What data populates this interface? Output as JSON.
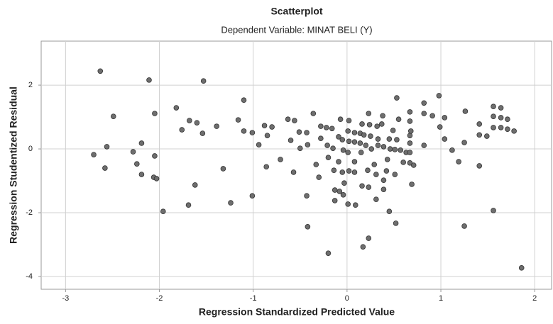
{
  "chart_data": {
    "type": "scatter",
    "title": "Scatterplot",
    "subtitle": "Dependent Variable: MINAT BELI (Y)",
    "x_label": "Regression Standardized Predicted Value",
    "y_label": "Regression Studentized Residual",
    "color": "#6e6e6e",
    "grid": true,
    "xlim": [
      -3.26,
      2.18
    ],
    "xticks": [
      -3,
      -2,
      -1,
      0,
      1,
      2
    ],
    "ylim": [
      -4.4,
      3.38
    ],
    "yticks": [
      -4,
      -2,
      0,
      2
    ],
    "x": [
      -2.63,
      -2.11,
      -1.53,
      -2.49,
      -2.05,
      -1.82,
      -1.76,
      -1.68,
      -1.6,
      -1.54,
      -1.39,
      -1.16,
      -1.1,
      -1.1,
      -1.01,
      -0.94,
      -0.88,
      -0.8,
      -0.86,
      -1.01,
      -1.24,
      -1.32,
      -1.62,
      -1.69,
      -1.96,
      -2.7,
      -2.56,
      -2.58,
      -2.28,
      -2.24,
      -2.19,
      -2.19,
      -2.06,
      -2.03,
      -2.05,
      -0.85,
      -0.71,
      -0.63,
      -0.56,
      -0.51,
      -0.43,
      -0.6,
      -0.57,
      -0.5,
      -0.42,
      -0.43,
      -0.42,
      -0.36,
      -0.33,
      -0.28,
      -0.28,
      -0.3,
      -0.22,
      -0.21,
      -0.2,
      -0.2,
      -0.16,
      -0.15,
      -0.14,
      -0.13,
      -0.13,
      -0.09,
      -0.09,
      -0.08,
      -0.07,
      -0.05,
      -0.04,
      -0.05,
      -0.03,
      -0.04,
      0.02,
      0.01,
      0.02,
      0.01,
      0.02,
      0.01,
      0.08,
      0.08,
      0.08,
      0.08,
      0.09,
      0.14,
      0.14,
      0.15,
      0.16,
      0.16,
      0.17,
      0.18,
      0.2,
      0.22,
      0.23,
      0.23,
      0.23,
      0.24,
      0.25,
      0.26,
      0.29,
      0.31,
      0.31,
      0.32,
      0.33,
      0.33,
      0.38,
      0.37,
      0.39,
      0.39,
      0.39,
      0.43,
      0.42,
      0.45,
      0.46,
      0.45,
      0.49,
      0.51,
      0.51,
      0.53,
      0.53,
      0.52,
      0.55,
      0.57,
      0.6,
      0.63,
      0.67,
      0.67,
      0.67,
      0.67,
      0.67,
      0.67,
      0.69,
      0.68,
      0.71,
      0.82,
      0.82,
      0.82,
      0.91,
      0.98,
      0.99,
      1.04,
      1.04,
      1.12,
      1.19,
      1.26,
      1.25,
      1.25,
      1.41,
      1.41,
      1.41,
      1.49,
      1.56,
      1.56,
      1.56,
      1.56,
      1.64,
      1.64,
      1.64,
      1.71,
      1.71,
      1.78,
      1.86
    ],
    "y": [
      2.44,
      2.16,
      2.13,
      1.02,
      1.11,
      1.29,
      0.6,
      0.89,
      0.82,
      0.49,
      0.71,
      0.91,
      1.53,
      0.56,
      0.51,
      0.13,
      0.73,
      0.69,
      -0.56,
      -1.47,
      -1.69,
      -0.62,
      -1.13,
      -1.76,
      -1.96,
      -0.18,
      0.07,
      -0.6,
      -0.09,
      -0.47,
      0.18,
      -0.8,
      -0.89,
      -0.93,
      -0.22,
      0.42,
      -0.33,
      0.93,
      0.89,
      0.53,
      0.51,
      0.27,
      -0.73,
      0.02,
      0.13,
      -1.47,
      -2.44,
      1.11,
      -0.49,
      0.71,
      0.33,
      -0.89,
      0.67,
      0.11,
      -0.27,
      -3.27,
      0.64,
      0.02,
      -0.67,
      -1.29,
      -1.62,
      0.38,
      -0.4,
      -1.33,
      0.93,
      0.29,
      -0.04,
      -0.73,
      -1.07,
      -1.44,
      0.89,
      0.56,
      0.24,
      -0.11,
      -0.69,
      -1.73,
      0.51,
      0.22,
      -0.4,
      -0.73,
      -1.76,
      0.49,
      0.18,
      -0.11,
      0.78,
      -1.16,
      -3.07,
      0.44,
      0.11,
      -0.67,
      -1.2,
      -2.8,
      1.11,
      0.76,
      0.4,
      0.0,
      -0.49,
      -1.58,
      -0.8,
      0.71,
      0.31,
      0.11,
      1.04,
      0.78,
      0.07,
      -0.98,
      -1.27,
      -0.33,
      -0.69,
      0.31,
      0.0,
      -1.96,
      0.58,
      -0.02,
      -0.8,
      1.6,
      0.29,
      -2.33,
      0.93,
      -0.04,
      -0.42,
      -0.11,
      0.42,
      1.16,
      0.87,
      0.18,
      -0.44,
      -0.11,
      -1.11,
      0.56,
      -0.51,
      1.44,
      1.11,
      0.11,
      1.04,
      1.67,
      0.69,
      0.98,
      0.31,
      -0.04,
      -0.4,
      1.18,
      0.2,
      -2.42,
      0.78,
      0.44,
      -0.53,
      0.4,
      1.33,
      1.02,
      0.67,
      -1.93,
      1.29,
      0.98,
      0.67,
      0.93,
      0.62,
      0.56,
      -3.73
    ]
  }
}
